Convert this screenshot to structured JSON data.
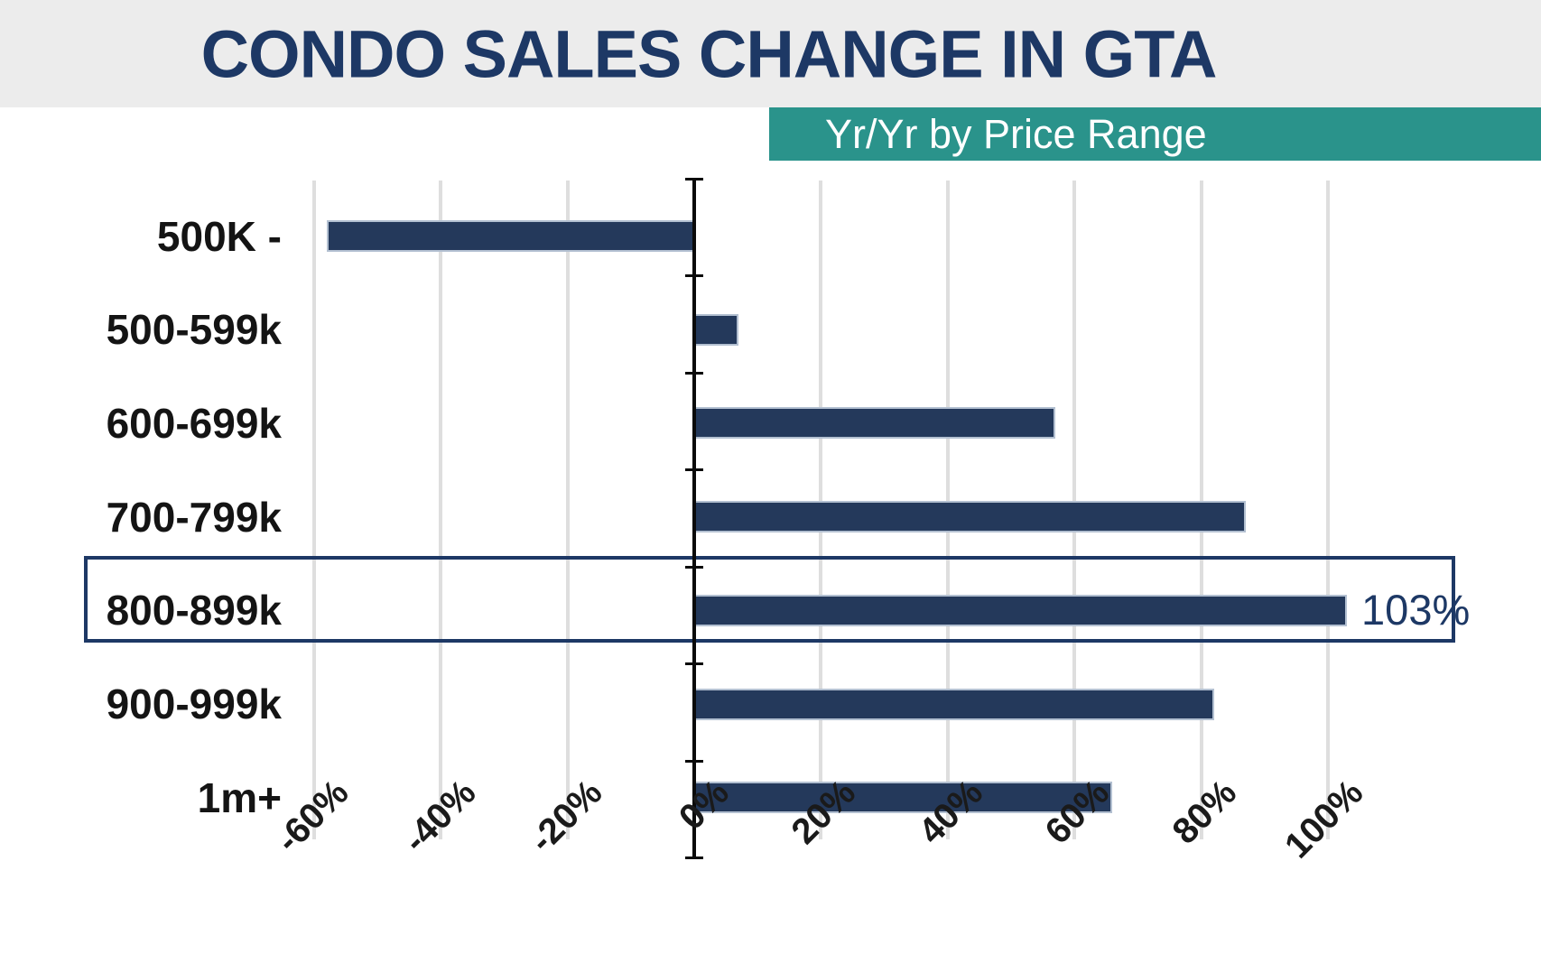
{
  "header": {
    "title": "CONDO SALES CHANGE IN GTA"
  },
  "banner": {
    "subtitle": "Yr/Yr by Price Range"
  },
  "chart_data": {
    "type": "bar",
    "orientation": "horizontal",
    "title": "CONDO SALES CHANGE IN GTA",
    "subtitle": "Yr/Yr by Price Range",
    "categories": [
      "500K -",
      "500-599k",
      "600-699k",
      "700-799k",
      "800-899k",
      "900-999k",
      "1m+"
    ],
    "values": [
      -58,
      7,
      57,
      87,
      103,
      82,
      66
    ],
    "unit": "%",
    "x_ticks": [
      -60,
      -40,
      -20,
      0,
      20,
      40,
      60,
      80,
      100
    ],
    "x_tick_labels": [
      "-60%",
      "-40%",
      "-20%",
      "0%",
      "20%",
      "40%",
      "60%",
      "80%",
      "100%"
    ],
    "xlim": [
      -62,
      120
    ],
    "grid": true,
    "legend": "none",
    "highlight": {
      "category": "800-899k",
      "index": 4,
      "style": "outlined-box"
    },
    "data_labels": [
      {
        "index": 4,
        "text": "103%"
      }
    ],
    "colors": {
      "bar": "#24395b",
      "bar_border": "#b3c0d1",
      "gridline": "#dedede",
      "zero_axis": "#0a0a0a",
      "highlight_border": "#1d3865",
      "data_label_text": "#1d3865",
      "title_text": "#1d3865",
      "header_bg": "#ececec",
      "banner_bg": "#2a938b",
      "banner_text": "#ffffff",
      "tick_label_text": "#1a1a1a",
      "category_label_text": "#141414"
    }
  }
}
